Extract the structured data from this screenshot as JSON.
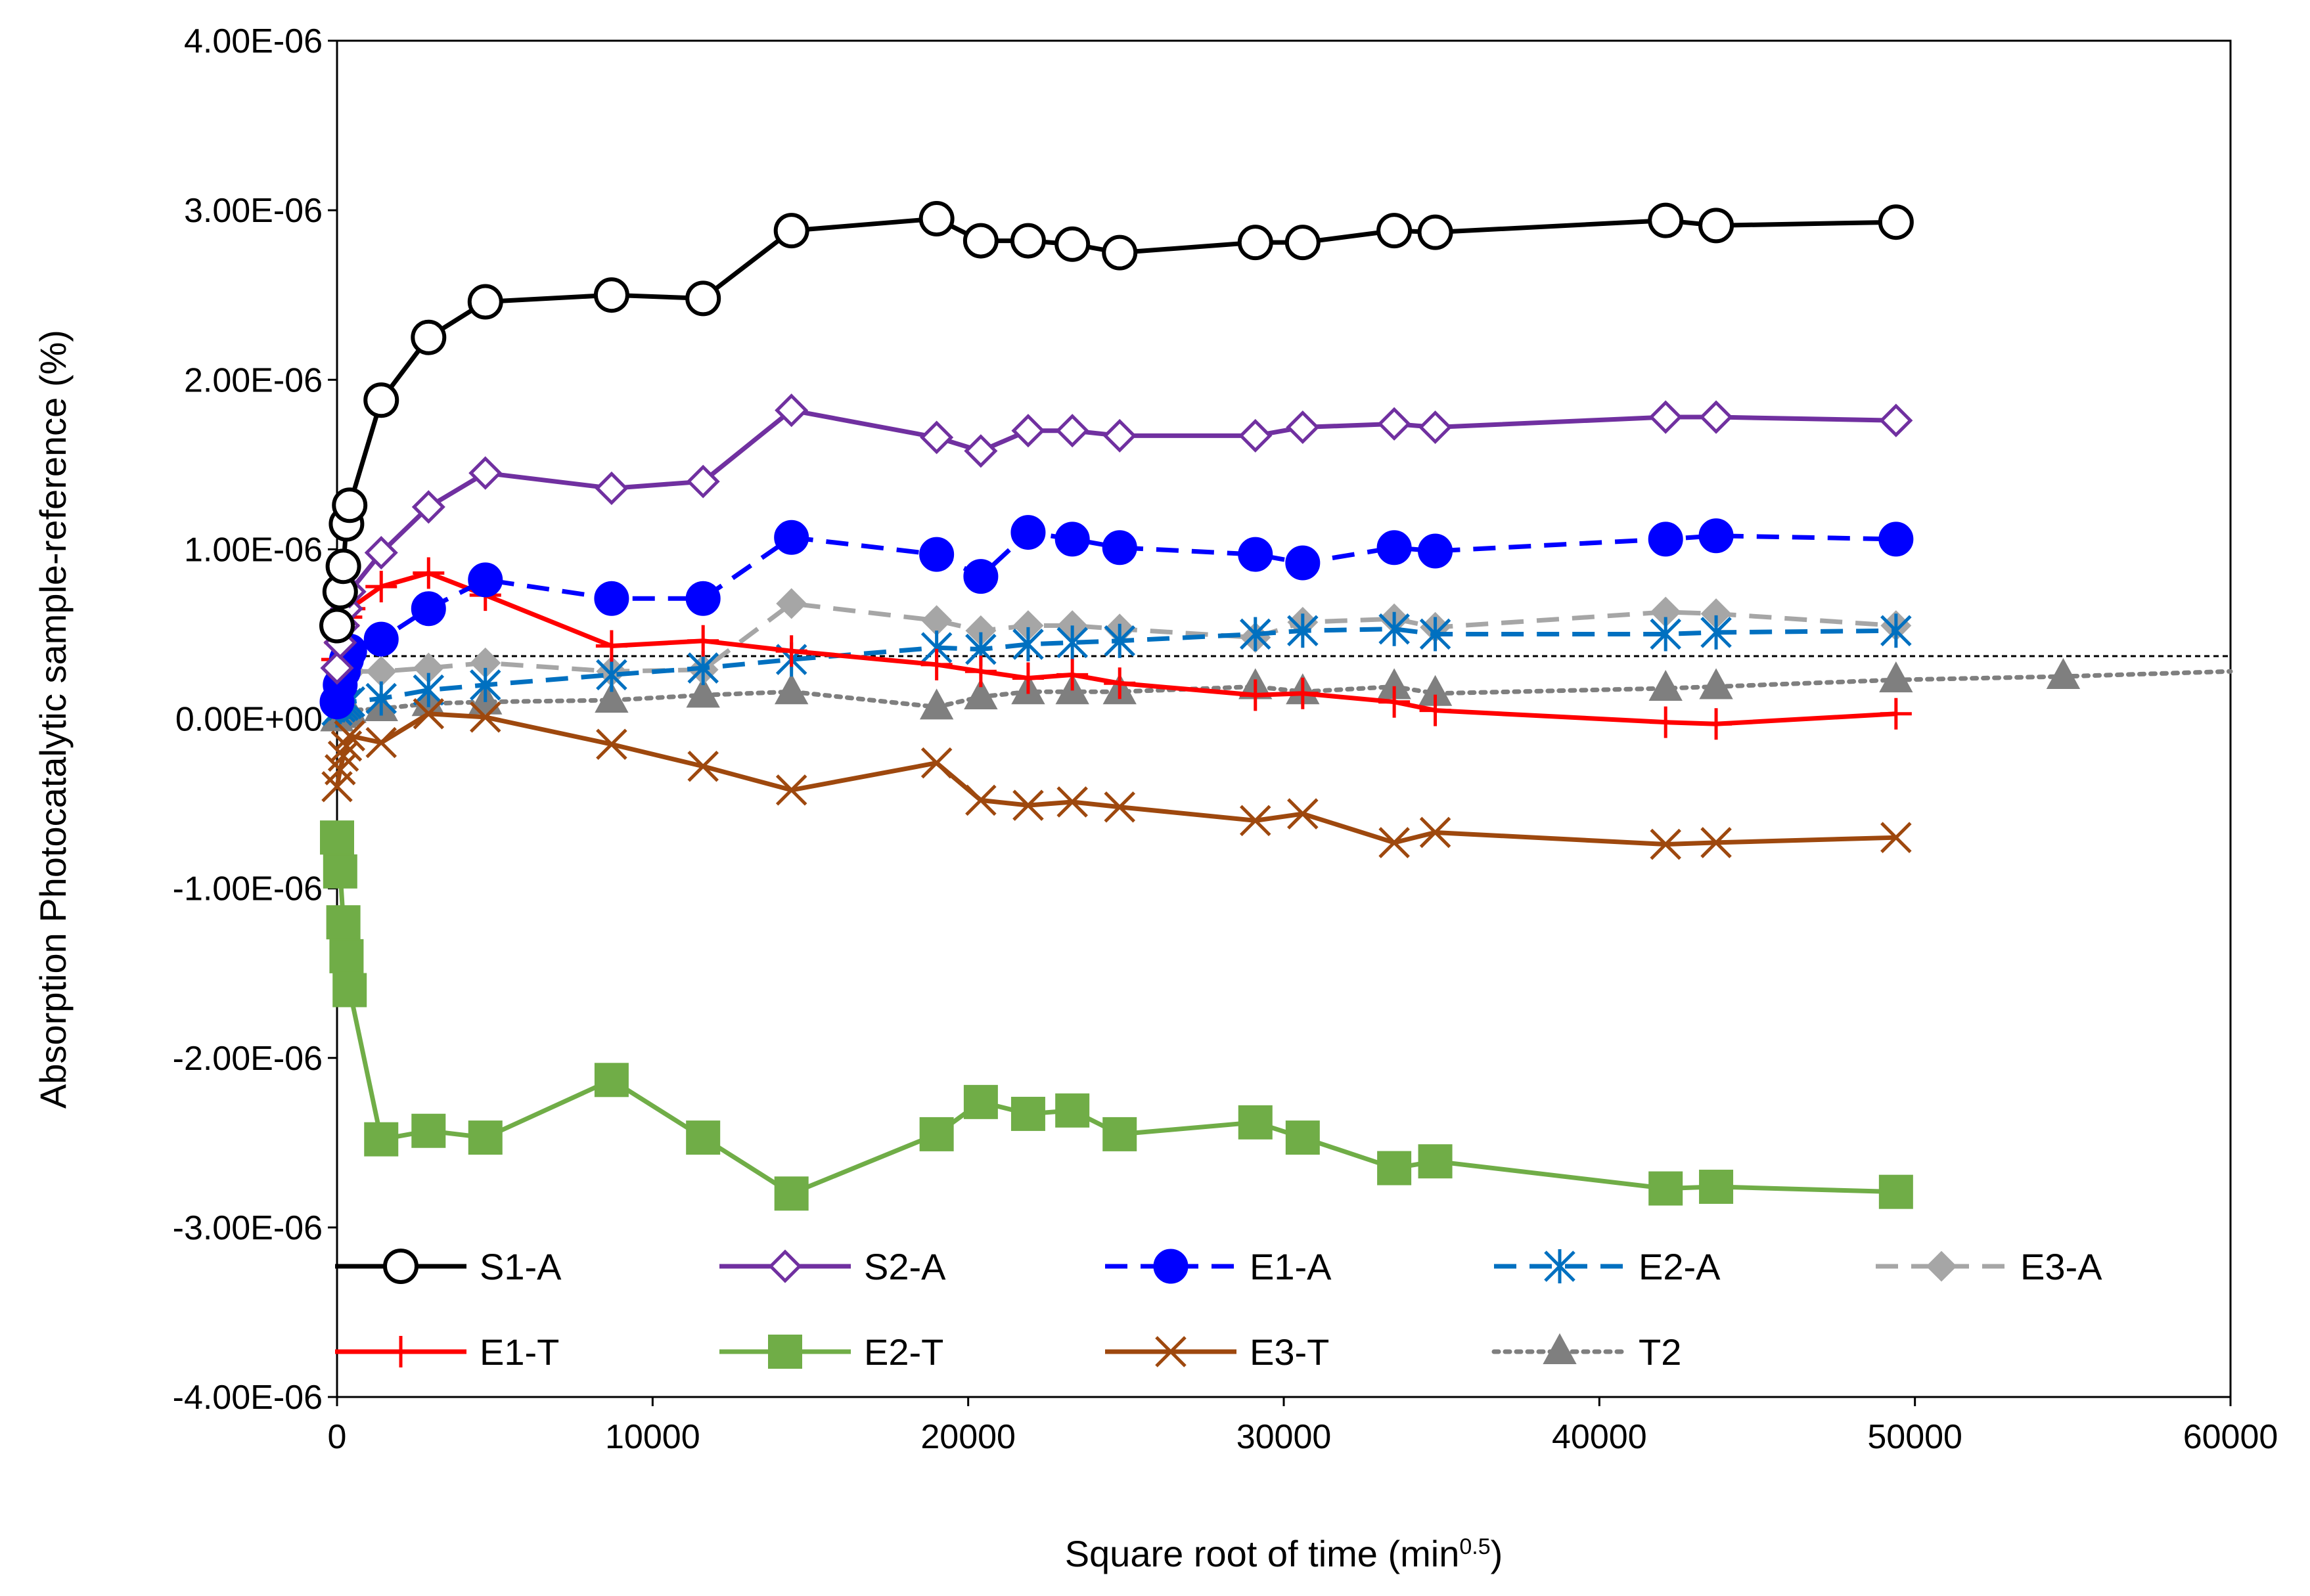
{
  "chart_data": {
    "type": "line",
    "title": "",
    "xlabel": "Square root of time (min",
    "xlabel_sup": "0.5",
    "xlabel_end": ")",
    "ylabel": "Absorption Photocatalytic sample-reference (%)",
    "xlim": [
      0,
      60000
    ],
    "ylim": [
      -4e-06,
      4e-06
    ],
    "x_ticks": [
      "0",
      "10000",
      "20000",
      "30000",
      "40000",
      "50000",
      "60000"
    ],
    "y_ticks": [
      "-4.00E-06",
      "-3.00E-06",
      "-2.00E-06",
      "-1.00E-06",
      "0.00E+00",
      "1.00E-06",
      "2.00E-06",
      "3.00E-06",
      "4.00E-06"
    ],
    "reference_line_y": 3.7e-07,
    "legend_position": "bottom-inside",
    "series": [
      {
        "name": "S1-A",
        "color": "#000000",
        "dash": "solid",
        "marker": "circle-open",
        "x": [
          0,
          100,
          200,
          300,
          400,
          1400,
          2900,
          4700,
          8700,
          11600,
          14400,
          19000,
          20400,
          21900,
          23300,
          24800,
          29100,
          30600,
          33500,
          34800,
          42100,
          43700,
          49400
        ],
        "y": [
          5.5e-07,
          7.5e-07,
          9e-07,
          1.15e-06,
          1.26e-06,
          1.88e-06,
          2.25e-06,
          2.46e-06,
          2.5e-06,
          2.48e-06,
          2.88e-06,
          2.95e-06,
          2.82e-06,
          2.82e-06,
          2.8e-06,
          2.75e-06,
          2.81e-06,
          2.81e-06,
          2.88e-06,
          2.87e-06,
          2.94e-06,
          2.91e-06,
          2.93e-06
        ]
      },
      {
        "name": "S2-A",
        "color": "#7030A0",
        "dash": "solid",
        "marker": "diamond-open",
        "x": [
          0,
          100,
          200,
          300,
          400,
          1400,
          2900,
          4700,
          8700,
          11600,
          14400,
          19000,
          20400,
          21900,
          23300,
          24800,
          29100,
          30600,
          33500,
          34800,
          42100,
          43700,
          49400
        ],
        "y": [
          3e-07,
          4.5e-07,
          5.5e-07,
          6.5e-07,
          7.5e-07,
          9.8e-07,
          1.25e-06,
          1.45e-06,
          1.36e-06,
          1.4e-06,
          1.82e-06,
          1.66e-06,
          1.58e-06,
          1.7e-06,
          1.7e-06,
          1.67e-06,
          1.67e-06,
          1.72e-06,
          1.74e-06,
          1.72e-06,
          1.78e-06,
          1.78e-06,
          1.76e-06
        ]
      },
      {
        "name": "E1-A",
        "color": "#0000FF",
        "dash": "dashed",
        "marker": "circle-filled",
        "x": [
          0,
          100,
          200,
          300,
          400,
          1400,
          2900,
          4700,
          8700,
          11600,
          14400,
          19000,
          20400,
          21900,
          23300,
          24800,
          29100,
          30600,
          33500,
          34800,
          42100,
          43700,
          49400
        ],
        "y": [
          1e-07,
          2e-07,
          2.8e-07,
          3.5e-07,
          4e-07,
          4.7e-07,
          6.5e-07,
          8.2e-07,
          7.1e-07,
          7.1e-07,
          1.07e-06,
          9.7e-07,
          8.4e-07,
          1.1e-06,
          1.06e-06,
          1.01e-06,
          9.7e-07,
          9.2e-07,
          1.01e-06,
          9.9e-07,
          1.06e-06,
          1.08e-06,
          1.06e-06
        ]
      },
      {
        "name": "E2-A",
        "color": "#0070C0",
        "dash": "dashed",
        "marker": "asterisk",
        "x": [
          0,
          100,
          200,
          300,
          400,
          1400,
          2900,
          4700,
          8700,
          11600,
          14400,
          19000,
          20400,
          21900,
          23300,
          24800,
          29100,
          30600,
          33500,
          34800,
          42100,
          43700,
          49400
        ],
        "y": [
          5e-08,
          7e-08,
          8e-08,
          9e-08,
          1e-07,
          1.2e-07,
          1.7e-07,
          2e-07,
          2.6e-07,
          3e-07,
          3.5e-07,
          4.2e-07,
          4.1e-07,
          4.4e-07,
          4.5e-07,
          4.6e-07,
          5e-07,
          5.2e-07,
          5.3e-07,
          5e-07,
          5e-07,
          5.1e-07,
          5.2e-07
        ]
      },
      {
        "name": "E3-A",
        "color": "#A6A6A6",
        "dash": "dashed",
        "marker": "diamond-filled",
        "x": [
          0,
          100,
          200,
          300,
          400,
          1400,
          2900,
          4700,
          8700,
          11600,
          14400,
          19000,
          20400,
          21900,
          23300,
          24800,
          29100,
          30600,
          33500,
          34800,
          42100,
          43700,
          49400
        ],
        "y": [
          1.5e-07,
          2e-07,
          2.3e-07,
          2.6e-07,
          2.8e-07,
          2.8e-07,
          3e-07,
          3.3e-07,
          2.8e-07,
          2.9e-07,
          6.8e-07,
          5.8e-07,
          5.2e-07,
          5.5e-07,
          5.5e-07,
          5.3e-07,
          4.8e-07,
          5.7e-07,
          5.9e-07,
          5.4e-07,
          6.3e-07,
          6.2e-07,
          5.5e-07
        ]
      },
      {
        "name": "E1-T",
        "color": "#FF0000",
        "dash": "solid",
        "marker": "plus",
        "x": [
          0,
          100,
          200,
          300,
          400,
          1400,
          2900,
          4700,
          8700,
          11600,
          14400,
          19000,
          20400,
          21900,
          23300,
          24800,
          29100,
          30600,
          33500,
          34800,
          42100,
          43700,
          49400
        ],
        "y": [
          3.5e-07,
          4.5e-07,
          5.5e-07,
          6e-07,
          6.5e-07,
          7.8e-07,
          8.6e-07,
          7.3e-07,
          4.3e-07,
          4.6e-07,
          4e-07,
          3.2e-07,
          2.8e-07,
          2.4e-07,
          2.6e-07,
          2.1e-07,
          1.4e-07,
          1.5e-07,
          1e-07,
          5e-08,
          -2e-08,
          -3e-08,
          3e-08
        ]
      },
      {
        "name": "E2-T",
        "color": "#70AD47",
        "dash": "solid",
        "marker": "square-filled",
        "x": [
          0,
          100,
          200,
          300,
          400,
          1400,
          2900,
          4700,
          8700,
          11600,
          14400,
          19000,
          20400,
          21900,
          23300,
          24800,
          29100,
          30600,
          33500,
          34800,
          42100,
          43700,
          49400
        ],
        "y": [
          -7e-07,
          -9e-07,
          -1.2e-06,
          -1.4e-06,
          -1.6e-06,
          -2.48e-06,
          -2.43e-06,
          -2.47e-06,
          -2.13e-06,
          -2.47e-06,
          -2.8e-06,
          -2.45e-06,
          -2.26e-06,
          -2.33e-06,
          -2.31e-06,
          -2.45e-06,
          -2.38e-06,
          -2.47e-06,
          -2.65e-06,
          -2.61e-06,
          -2.77e-06,
          -2.76e-06,
          -2.79e-06
        ]
      },
      {
        "name": "E3-T",
        "color": "#9E480E",
        "dash": "solid",
        "marker": "x",
        "x": [
          0,
          100,
          200,
          300,
          400,
          1400,
          2900,
          4700,
          8700,
          11600,
          14400,
          19000,
          20400,
          21900,
          23300,
          24800,
          29100,
          30600,
          33500,
          34800,
          42100,
          43700,
          49400
        ],
        "y": [
          -4e-07,
          -3e-07,
          -2.2e-07,
          -1.6e-07,
          -1e-07,
          -1.4e-07,
          3e-08,
          1e-08,
          -1.5e-07,
          -2.8e-07,
          -4.2e-07,
          -2.6e-07,
          -4.8e-07,
          -5.1e-07,
          -4.9e-07,
          -5.2e-07,
          -6e-07,
          -5.6e-07,
          -7.3e-07,
          -6.7e-07,
          -7.4e-07,
          -7.3e-07,
          -7e-07
        ]
      },
      {
        "name": "T2",
        "color": "#7F7F7F",
        "dash": "dotted",
        "marker": "triangle-filled",
        "x": [
          0,
          100,
          200,
          300,
          400,
          1400,
          2900,
          4700,
          8700,
          11600,
          14400,
          19000,
          20400,
          21900,
          23300,
          24800,
          29100,
          30600,
          33500,
          34800,
          42100,
          43700,
          49400,
          54700,
          60000
        ],
        "y": [
          0,
          2e-08,
          3e-08,
          4e-08,
          5e-08,
          6e-08,
          9e-08,
          1e-07,
          1.1e-07,
          1.4e-07,
          1.6e-07,
          7e-08,
          1.3e-07,
          1.6e-07,
          1.6e-07,
          1.6e-07,
          1.9e-07,
          1.6e-07,
          1.9e-07,
          1.5e-07,
          1.8e-07,
          1.9e-07,
          2.3e-07,
          2.5e-07,
          2.8e-07
        ],
        "marker_count": 24
      }
    ]
  }
}
